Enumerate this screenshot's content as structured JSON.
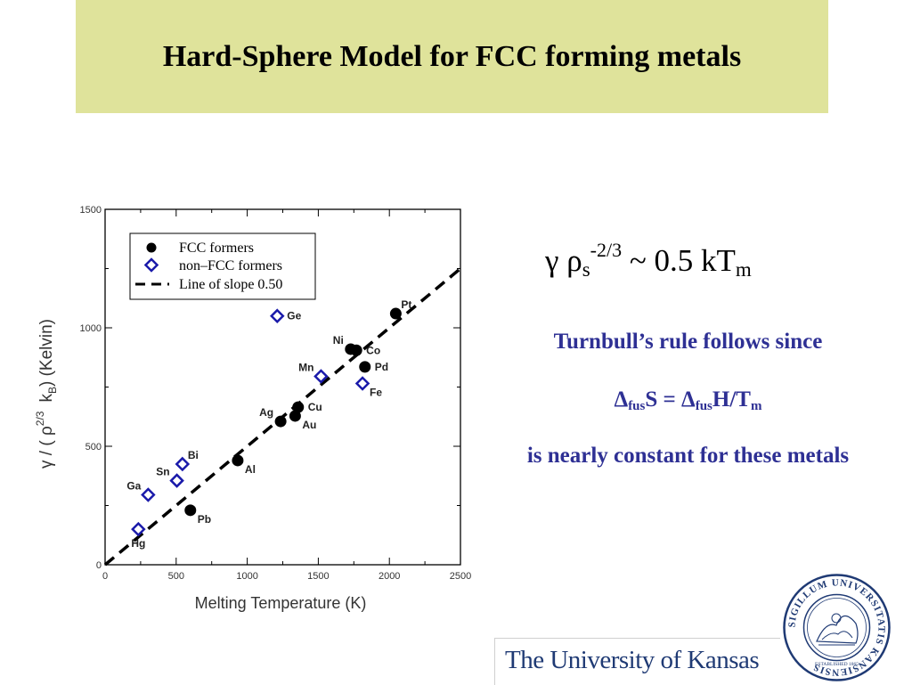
{
  "slide": {
    "title": "Hard-Sphere Model for FCC forming metals"
  },
  "formula": {
    "gamma": "γ",
    "rho": "ρ",
    "rho_sub": "s",
    "exponent": "-2/3",
    "rhs": " ~ 0.5 kT",
    "rhs_sub": "m"
  },
  "text_block": {
    "line1": "Turnbull’s rule follows since",
    "delta": "Δ",
    "fus": "fus",
    "eq_mid": "S = ",
    "eq_end": "H/T",
    "eq_sub_m": "m",
    "line3": "is nearly constant for these metals"
  },
  "footer": {
    "university": "The University of Kansas",
    "seal_text": "SIGILLUM UNIVERSITATIS KANSIENSIS",
    "seal_established": "ESTABLISHED 1865"
  },
  "chart_data": {
    "type": "scatter",
    "xlabel": "Melting Temperature (K)",
    "ylabel_parts": {
      "a": "γ / ( ρ",
      "exp": "2/3",
      "b": "k",
      "sub": "B",
      "c": ")  (Kelvin)"
    },
    "xlim": [
      0,
      2500
    ],
    "ylim": [
      0,
      1500
    ],
    "xticks": [
      0,
      500,
      1000,
      1500,
      2000,
      2500
    ],
    "yticks": [
      0,
      500,
      1000,
      1500
    ],
    "legend_position": "top-left",
    "legend": {
      "fcc": "FCC formers",
      "non_fcc": "non–FCC formers",
      "line": "Line of slope 0.50"
    },
    "line": {
      "slope": 0.5,
      "x_range": [
        0,
        2490
      ]
    },
    "colors": {
      "fcc": "#000000",
      "non_fcc": "#1a1aaa",
      "line": "#000000"
    },
    "series": [
      {
        "name": "FCC formers",
        "marker": "circle",
        "points": [
          {
            "label": "Pt",
            "x": 2045,
            "y": 1060,
            "lpos": "ur"
          },
          {
            "label": "Ni",
            "x": 1728,
            "y": 910,
            "lpos": "ul"
          },
          {
            "label": "Co",
            "x": 1768,
            "y": 905,
            "lpos": "r"
          },
          {
            "label": "Pd",
            "x": 1828,
            "y": 835,
            "lpos": "r"
          },
          {
            "label": "Cu",
            "x": 1358,
            "y": 665,
            "lpos": "r"
          },
          {
            "label": "Au",
            "x": 1337,
            "y": 628,
            "lpos": "dr"
          },
          {
            "label": "Ag",
            "x": 1235,
            "y": 605,
            "lpos": "ul"
          },
          {
            "label": "Al",
            "x": 933,
            "y": 440,
            "lpos": "dr"
          },
          {
            "label": "Pb",
            "x": 600,
            "y": 230,
            "lpos": "dr"
          }
        ]
      },
      {
        "name": "non–FCC formers",
        "marker": "diamond",
        "points": [
          {
            "label": "Ge",
            "x": 1211,
            "y": 1050,
            "lpos": "r"
          },
          {
            "label": "Mn",
            "x": 1519,
            "y": 795,
            "lpos": "ul"
          },
          {
            "label": "Fe",
            "x": 1811,
            "y": 765,
            "lpos": "dr"
          },
          {
            "label": "Bi",
            "x": 544,
            "y": 425,
            "lpos": "ur"
          },
          {
            "label": "Sn",
            "x": 505,
            "y": 355,
            "lpos": "ul"
          },
          {
            "label": "Ga",
            "x": 303,
            "y": 295,
            "lpos": "ul"
          },
          {
            "label": "Hg",
            "x": 234,
            "y": 150,
            "lpos": "d"
          }
        ]
      }
    ]
  }
}
